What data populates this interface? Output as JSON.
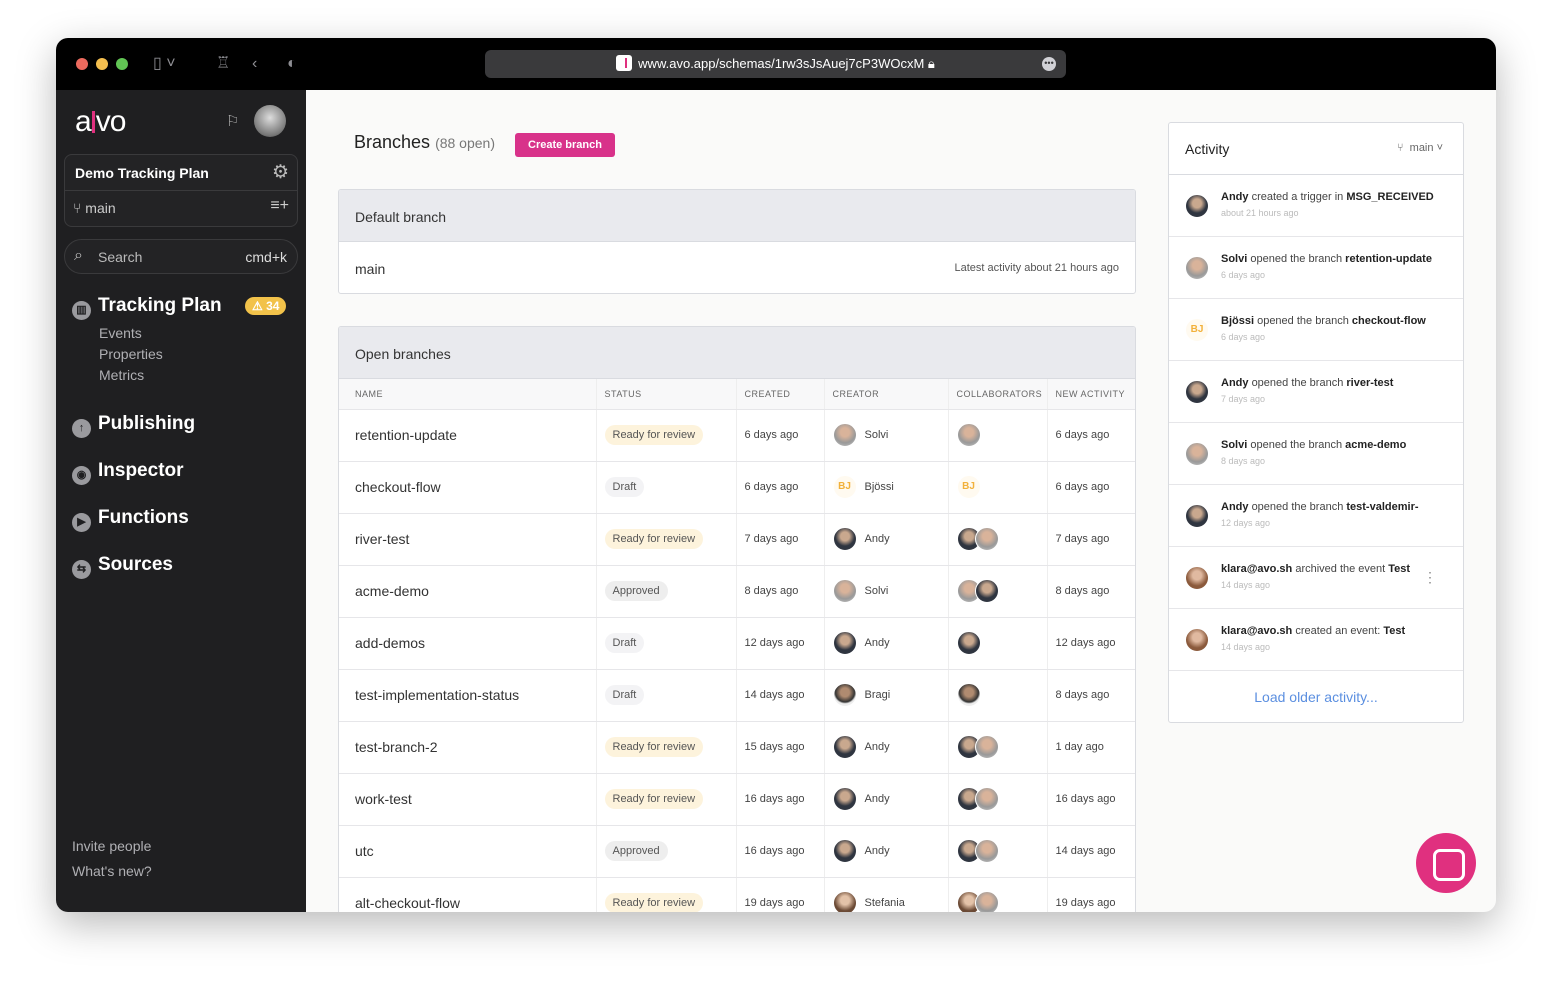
{
  "browser": {
    "url": "www.avo.app/schemas/1rw3sJsAuej7cP3WOcxM",
    "traffic_colors": [
      "#ec6a5e",
      "#f4bf4f",
      "#61c554"
    ]
  },
  "sidebar": {
    "logo": "avo",
    "plan_name": "Demo Tracking Plan",
    "branch": "main",
    "search_placeholder": "Search",
    "search_shortcut": "cmd+k",
    "tracking_plan": {
      "label": "Tracking Plan",
      "badge": "34",
      "items": [
        "Events",
        "Properties",
        "Metrics"
      ]
    },
    "nav": [
      {
        "label": "Publishing",
        "icon": "upload-icon"
      },
      {
        "label": "Inspector",
        "icon": "inspector-icon"
      },
      {
        "label": "Functions",
        "icon": "play-icon"
      },
      {
        "label": "Sources",
        "icon": "sources-icon"
      }
    ],
    "footer": [
      "Invite people",
      "What's new?"
    ]
  },
  "main": {
    "title": "Branches",
    "count": "(88 open)",
    "create_label": "Create branch",
    "accent": "#d8328a",
    "default_branch": {
      "header": "Default branch",
      "name": "main",
      "activity": "Latest activity about 21 hours ago"
    },
    "open_branches": {
      "header": "Open branches",
      "columns": [
        "NAME",
        "STATUS",
        "CREATED",
        "CREATOR",
        "COLLABORATORS",
        "NEW ACTIVITY"
      ],
      "rows": [
        {
          "name": "retention-update",
          "status": "Ready for review",
          "created": "6 days ago",
          "creator": "Solvi",
          "creator_av": "S",
          "collab": [
            "S"
          ],
          "activity": "6 days ago"
        },
        {
          "name": "checkout-flow",
          "status": "Draft",
          "created": "6 days ago",
          "creator": "Bjössi",
          "creator_av": "BJ",
          "collab": [
            "BJ"
          ],
          "activity": "6 days ago"
        },
        {
          "name": "river-test",
          "status": "Ready for review",
          "created": "7 days ago",
          "creator": "Andy",
          "creator_av": "A",
          "collab": [
            "A",
            "S"
          ],
          "activity": "7 days ago"
        },
        {
          "name": "acme-demo",
          "status": "Approved",
          "created": "8 days ago",
          "creator": "Solvi",
          "creator_av": "S",
          "collab": [
            "S",
            "A"
          ],
          "activity": "8 days ago"
        },
        {
          "name": "add-demos",
          "status": "Draft",
          "created": "12 days ago",
          "creator": "Andy",
          "creator_av": "A",
          "collab": [
            "A"
          ],
          "activity": "12 days ago"
        },
        {
          "name": "test-implementation-status",
          "status": "Draft",
          "created": "14 days ago",
          "creator": "Bragi",
          "creator_av": "B",
          "collab": [
            "B"
          ],
          "activity": "8 days ago"
        },
        {
          "name": "test-branch-2",
          "status": "Ready for review",
          "created": "15 days ago",
          "creator": "Andy",
          "creator_av": "A",
          "collab": [
            "A",
            "S"
          ],
          "activity": "1 day ago"
        },
        {
          "name": "work-test",
          "status": "Ready for review",
          "created": "16 days ago",
          "creator": "Andy",
          "creator_av": "A",
          "collab": [
            "A",
            "S"
          ],
          "activity": "16 days ago"
        },
        {
          "name": "utc",
          "status": "Approved",
          "created": "16 days ago",
          "creator": "Andy",
          "creator_av": "A",
          "collab": [
            "A",
            "S"
          ],
          "activity": "14 days ago"
        },
        {
          "name": "alt-checkout-flow",
          "status": "Ready for review",
          "created": "19 days ago",
          "creator": "Stefania",
          "creator_av": "St",
          "collab": [
            "St",
            "S"
          ],
          "activity": "19 days ago"
        }
      ]
    }
  },
  "activity": {
    "title": "Activity",
    "branch": "main",
    "load_more": "Load older activity...",
    "items": [
      {
        "av": "A",
        "actor": "Andy",
        "action": "created a trigger in",
        "target": "MSG_RECEIVED",
        "time": "about 21 hours ago"
      },
      {
        "av": "S",
        "actor": "Solvi",
        "action": "opened the branch",
        "target": "retention-update",
        "time": "6 days ago"
      },
      {
        "av": "BJ",
        "actor": "Bjössi",
        "action": "opened the branch",
        "target": "checkout-flow",
        "time": "6 days ago"
      },
      {
        "av": "A",
        "actor": "Andy",
        "action": "opened the branch",
        "target": "river-test",
        "time": "7 days ago"
      },
      {
        "av": "S",
        "actor": "Solvi",
        "action": "opened the branch",
        "target": "acme-demo",
        "time": "8 days ago"
      },
      {
        "av": "A",
        "actor": "Andy",
        "action": "opened the branch",
        "target": "test-valdemir-",
        "time": "12 days ago"
      },
      {
        "av": "K",
        "actor": "klara@avo.sh",
        "action": "archived the event",
        "target": "Test",
        "time": "14 days ago"
      },
      {
        "av": "K",
        "actor": "klara@avo.sh",
        "action": "created an event:",
        "target": "Test",
        "time": "14 days ago"
      }
    ]
  }
}
